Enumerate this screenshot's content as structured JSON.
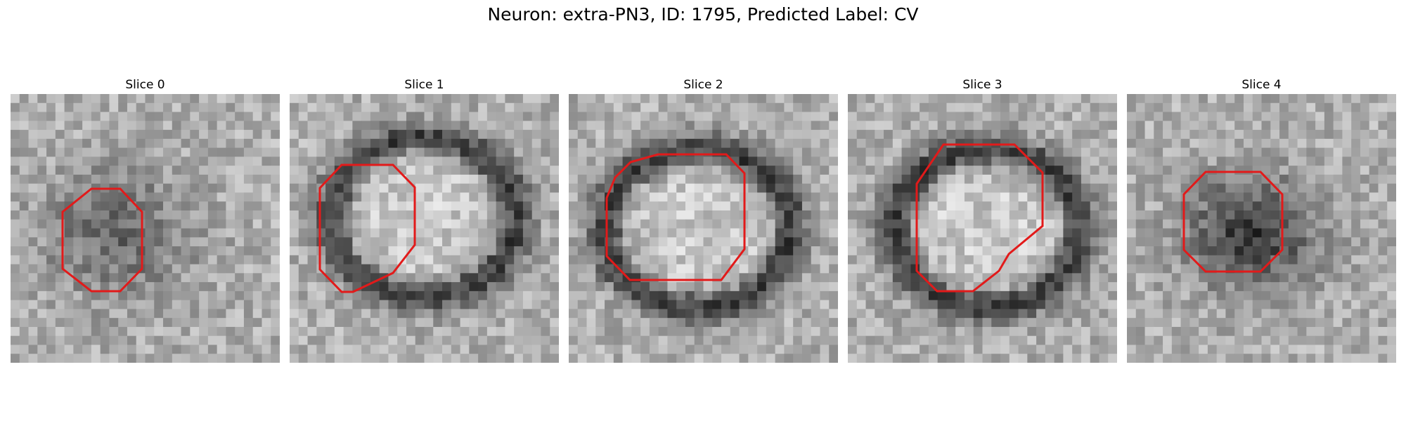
{
  "figure": {
    "title": "Neuron: extra-PN3, ID: 1795, Predicted Label: CV"
  },
  "panels": [
    {
      "title": "Slice 0",
      "pattern": "dark-blob-faint",
      "contour_color": "#e21a1a"
    },
    {
      "title": "Slice 1",
      "pattern": "ring",
      "contour_color": "#e21a1a"
    },
    {
      "title": "Slice 2",
      "pattern": "ring",
      "contour_color": "#e21a1a"
    },
    {
      "title": "Slice 3",
      "pattern": "ring",
      "contour_color": "#e21a1a"
    },
    {
      "title": "Slice 4",
      "pattern": "dark-blob",
      "contour_color": "#e21a1a"
    }
  ]
}
